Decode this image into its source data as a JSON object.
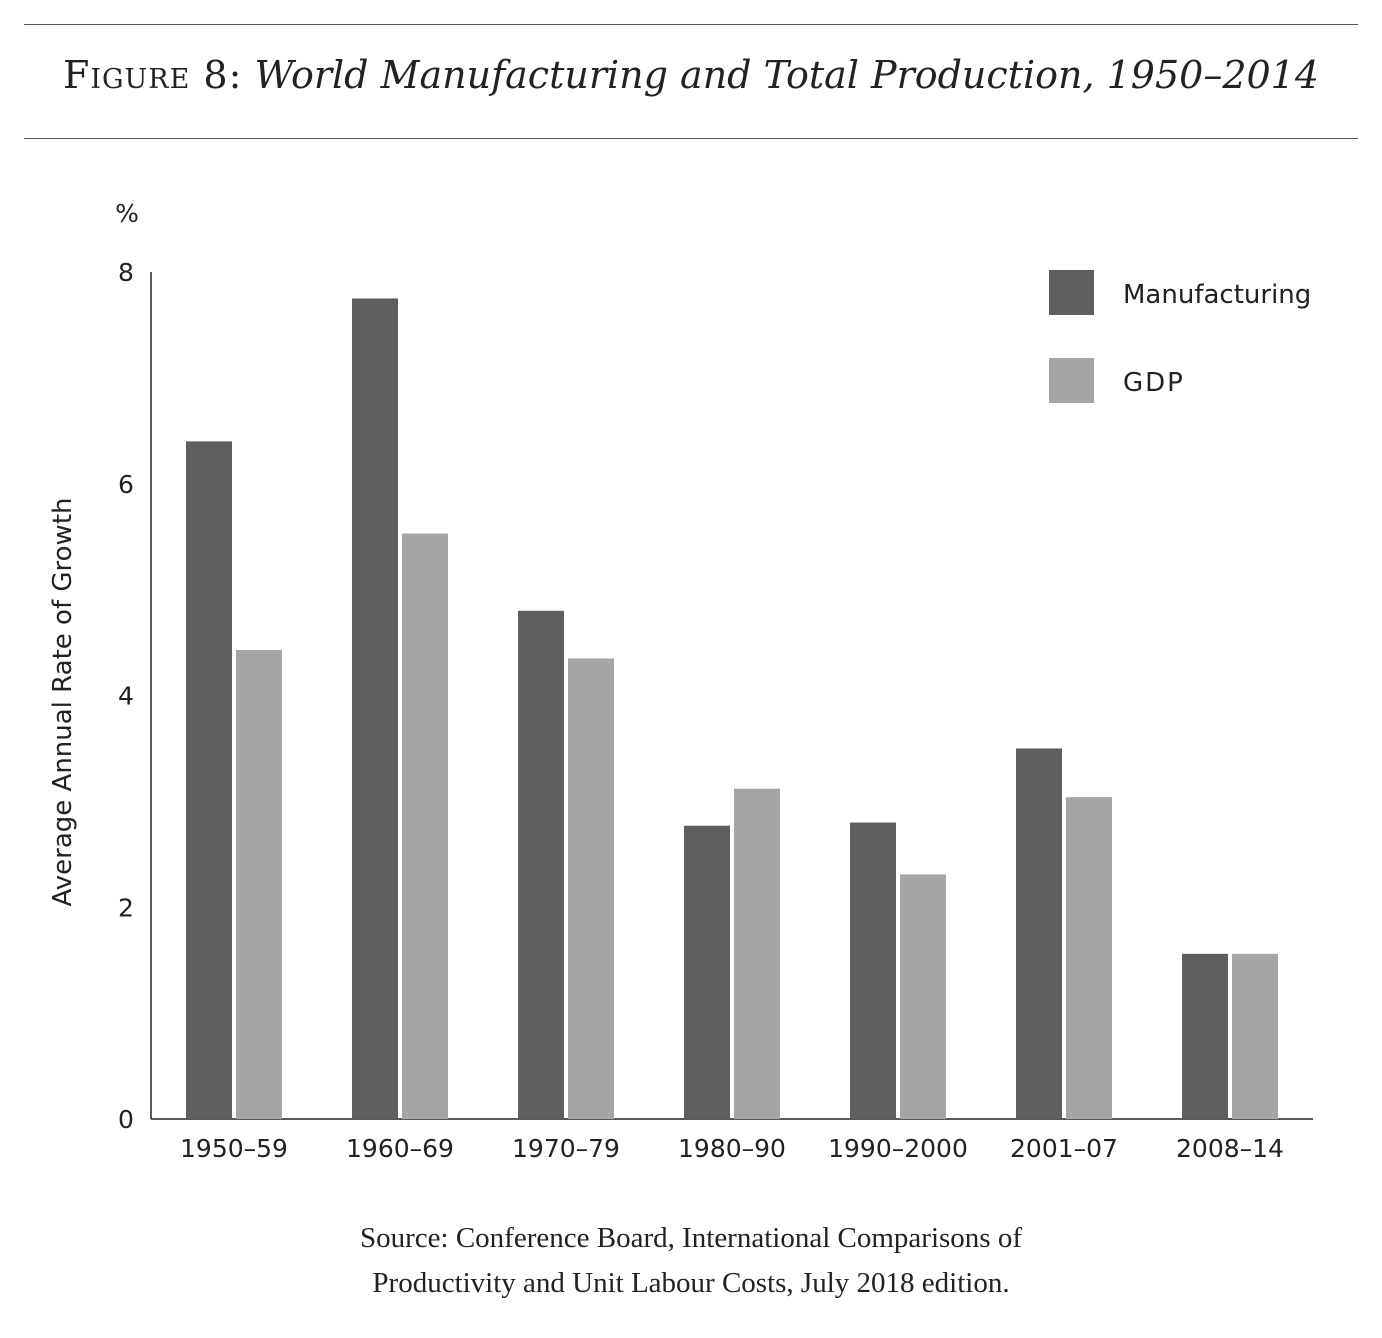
{
  "figure": {
    "label": "Figure 8:",
    "title": "World Manufacturing and Total Production, 1950–2014"
  },
  "source_lines": [
    "Source: Conference Board, International Comparisons of",
    "Productivity and Unit Labour Costs, July 2018 edition."
  ],
  "colors": {
    "manufacturing": "#5e5e5e",
    "gdp": "#a5a5a5",
    "axis": "#222222"
  },
  "chart_data": {
    "type": "bar",
    "unit_label": "%",
    "ylabel": "Average Annual Rate of Growth",
    "xlabel": "",
    "ylim": [
      0,
      8
    ],
    "yticks": [
      0,
      2,
      4,
      6,
      8
    ],
    "grid": false,
    "legend_position": "top-right",
    "categories": [
      "1950–59",
      "1960–69",
      "1970–79",
      "1980–90",
      "1990–2000",
      "2001–07",
      "2008–14"
    ],
    "series": [
      {
        "name": "Manufacturing",
        "values": [
          6.4,
          7.75,
          4.8,
          2.77,
          2.8,
          3.5,
          1.56
        ]
      },
      {
        "name": "GDP",
        "values": [
          4.43,
          5.53,
          4.35,
          3.12,
          2.31,
          3.04,
          1.56
        ]
      }
    ]
  }
}
